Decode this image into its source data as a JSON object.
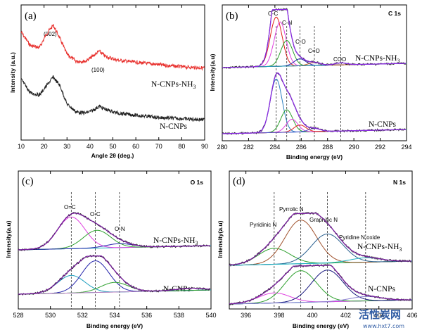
{
  "chart_data": [
    {
      "panel_label": "(a)",
      "type": "line",
      "title": "",
      "xlabel": "Angle 2θ (deg.)",
      "ylabel": "Intensity (a.u.)",
      "xlim": [
        10,
        90
      ],
      "x_ticks": [
        "10",
        "20",
        "30",
        "40",
        "50",
        "60",
        "70",
        "80",
        "90"
      ],
      "annotations": [
        "(002)",
        "(100)"
      ],
      "series": [
        {
          "name": "N-CNPs-NH3",
          "color": "#e8312e",
          "x": [
            10,
            14,
            18,
            21,
            24,
            27,
            30,
            34,
            38,
            41,
            44,
            47,
            52,
            60,
            70,
            80,
            90
          ],
          "y": [
            6.3,
            5.7,
            5.6,
            6.2,
            6.6,
            6.0,
            5.3,
            5.0,
            5.0,
            5.2,
            5.45,
            5.2,
            5.05,
            4.95,
            4.85,
            4.75,
            4.7
          ]
        },
        {
          "name": "N-CNPs",
          "color": "#222222",
          "x": [
            10,
            14,
            18,
            21,
            24,
            27,
            30,
            34,
            38,
            41,
            44,
            47,
            52,
            60,
            70,
            80,
            90
          ],
          "y": [
            4.2,
            3.6,
            3.5,
            3.9,
            4.3,
            3.9,
            3.1,
            2.75,
            2.7,
            2.8,
            3.0,
            2.85,
            2.7,
            2.6,
            2.5,
            2.45,
            2.4
          ]
        }
      ]
    },
    {
      "panel_label": "(b)",
      "type": "line",
      "title": "C 1s",
      "xlabel": "Binding energy (eV)",
      "ylabel": "Intensity(a.u)",
      "xlim": [
        280,
        294
      ],
      "x_ticks": [
        "280",
        "282",
        "284",
        "286",
        "288",
        "290",
        "292",
        "294"
      ],
      "component_labels": [
        "C-C",
        "C-N",
        "C-O",
        "C=O",
        "COO"
      ],
      "component_positions": [
        284.1,
        284.9,
        285.9,
        287.0,
        289.0
      ],
      "series": [
        {
          "name": "N-CNPs-NH3",
          "components": [
            {
              "color": "#e0201b",
              "center": 284.1,
              "height": 100
            },
            {
              "color": "#e040e0",
              "center": 284.4,
              "height": 90
            },
            {
              "color": "#2ea02e",
              "center": 284.9,
              "height": 52
            },
            {
              "color": "#2222aa",
              "center": 285.9,
              "height": 14
            },
            {
              "color": "#c06020",
              "center": 287.0,
              "height": 6
            },
            {
              "color": "#20a0c0",
              "center": 289.0,
              "height": 4
            }
          ]
        },
        {
          "name": "N-CNPs",
          "components": [
            {
              "color": "#2a7fc0",
              "center": 284.1,
              "height": 100
            },
            {
              "color": "#2ea02e",
              "center": 284.9,
              "height": 42
            },
            {
              "color": "#e040e0",
              "center": 285.3,
              "height": 24
            },
            {
              "color": "#e0201b",
              "center": 285.9,
              "height": 13
            },
            {
              "color": "#5050d0",
              "center": 287.0,
              "height": 6
            }
          ]
        }
      ]
    },
    {
      "panel_label": "(c)",
      "type": "line",
      "title": "O 1s",
      "xlabel": "Binding energy (eV)",
      "ylabel": "Intensity(a.u)",
      "xlim": [
        528,
        540
      ],
      "x_ticks": [
        "528",
        "530",
        "532",
        "534",
        "536",
        "538",
        "540"
      ],
      "component_labels": [
        "O=C",
        "O-C",
        "O-N"
      ],
      "component_positions": [
        531.3,
        532.8,
        534.3
      ],
      "series": [
        {
          "name": "N-CNPs-NH3",
          "components": [
            {
              "color": "#e040e0",
              "center": 531.3,
              "height": 80
            },
            {
              "color": "#2ea02e",
              "center": 532.9,
              "height": 45
            },
            {
              "color": "#2222aa",
              "center": 534.3,
              "height": 10
            }
          ]
        },
        {
          "name": "N-CNPs",
          "components": [
            {
              "color": "#20a0c0",
              "center": 531.3,
              "height": 40
            },
            {
              "color": "#2222aa",
              "center": 532.8,
              "height": 72
            },
            {
              "color": "#2ea02e",
              "center": 534.0,
              "height": 22
            },
            {
              "color": "#c080c0",
              "center": 538.7,
              "height": 5
            }
          ]
        }
      ]
    },
    {
      "panel_label": "(d)",
      "type": "line",
      "title": "N 1s",
      "xlabel": "Binding energy (eV)",
      "ylabel": "Intensity(a.u)",
      "xlim": [
        395,
        406
      ],
      "x_ticks": [
        "396",
        "398",
        "400",
        "402",
        "404",
        "406"
      ],
      "component_labels": [
        "Pyridinic N",
        "Pyrrolic N",
        "Graphitic N",
        "Pyridine N oxide"
      ],
      "component_positions": [
        397.7,
        399.3,
        400.9,
        403.2
      ],
      "series": [
        {
          "name": "N-CNPs-NH3",
          "components": [
            {
              "color": "#2ea02e",
              "center": 397.7,
              "height": 22
            },
            {
              "color": "#a0522d",
              "center": 399.3,
              "height": 60
            },
            {
              "color": "#2a6090",
              "center": 400.9,
              "height": 40
            },
            {
              "color": "#20b0c0",
              "center": 403.2,
              "height": 6
            }
          ]
        },
        {
          "name": "N-CNPs",
          "components": [
            {
              "color": "#e040e0",
              "center": 397.7,
              "height": 14
            },
            {
              "color": "#2ea02e",
              "center": 399.3,
              "height": 44
            },
            {
              "color": "#1a1a80",
              "center": 400.9,
              "height": 44
            },
            {
              "color": "#8a7fd0",
              "center": 403.2,
              "height": 6
            }
          ]
        }
      ]
    }
  ],
  "watermark": {
    "cn": "活性炭网",
    "url": "www.hxt7.com"
  }
}
